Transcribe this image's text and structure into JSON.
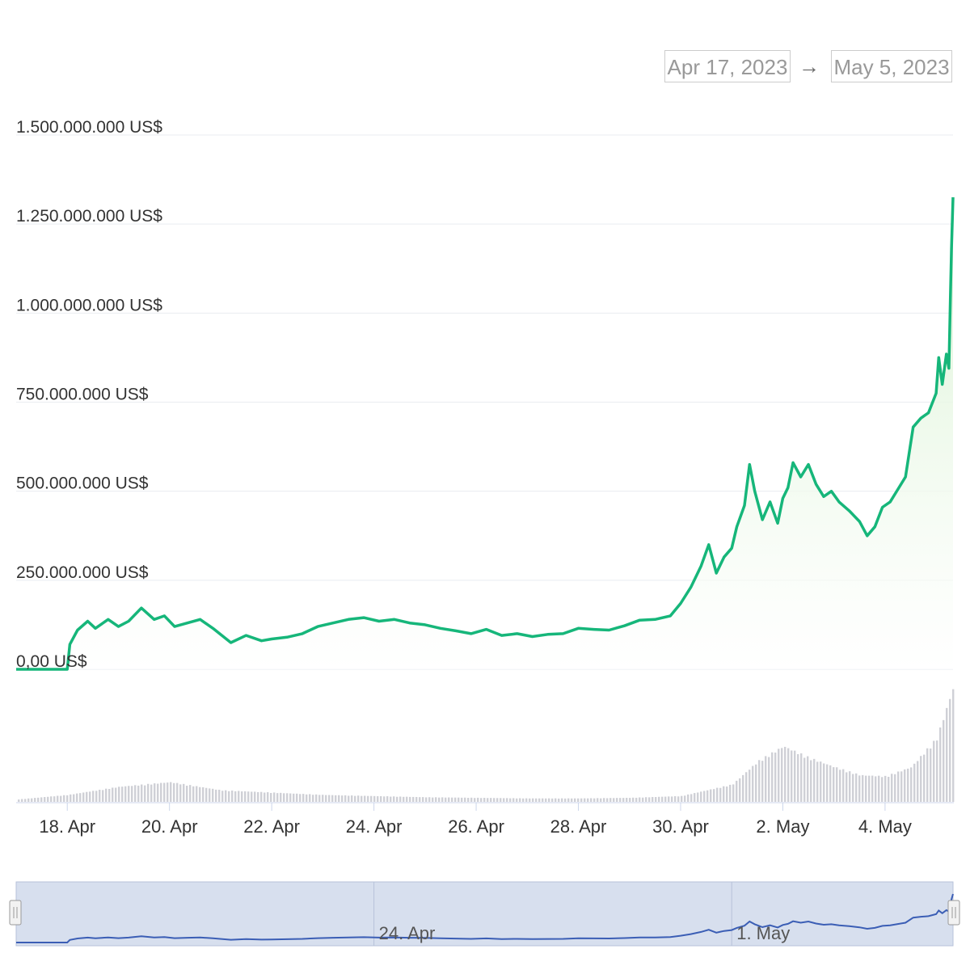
{
  "range_selector": {
    "from": "Apr 17, 2023",
    "arrow": "→",
    "to": "May 5, 2023"
  },
  "colors": {
    "line": "#16b67a",
    "area_top": "#d9f2d2",
    "volume": "#cfd0d6",
    "navigator_line": "#3b5eb5",
    "navigator_mask": "#d3dbec",
    "grid": "#e9ecf0"
  },
  "chart_data": {
    "type": "line",
    "y_tick_labels": [
      "0,00 US$",
      "250.000.000 US$",
      "500.000.000 US$",
      "750.000.000 US$",
      "1.000.000.000 US$",
      "1.250.000.000 US$",
      "1.500.000.000 US$"
    ],
    "y_tick_values": [
      0,
      250000000,
      500000000,
      750000000,
      1000000000,
      1250000000,
      1500000000
    ],
    "ylim": [
      0,
      1500000000
    ],
    "x_tick_labels": [
      "18. Apr",
      "20. Apr",
      "22. Apr",
      "24. Apr",
      "26. Apr",
      "28. Apr",
      "30. Apr",
      "2. May",
      "4. May"
    ],
    "x_tick_days": [
      1,
      3,
      5,
      7,
      9,
      11,
      13,
      15,
      17
    ],
    "xlim_days": [
      0.0,
      18.33
    ],
    "x_unit": "days since Apr 17, 2023",
    "grid": true,
    "series": [
      {
        "values": [
          [
            0.0,
            0
          ],
          [
            1.0,
            0
          ],
          [
            1.05,
            70000000
          ],
          [
            1.2,
            110000000
          ],
          [
            1.4,
            135000000
          ],
          [
            1.55,
            115000000
          ],
          [
            1.8,
            140000000
          ],
          [
            2.0,
            120000000
          ],
          [
            2.2,
            135000000
          ],
          [
            2.45,
            172000000
          ],
          [
            2.7,
            140000000
          ],
          [
            2.9,
            150000000
          ],
          [
            3.1,
            120000000
          ],
          [
            3.35,
            130000000
          ],
          [
            3.6,
            140000000
          ],
          [
            3.85,
            115000000
          ],
          [
            4.2,
            75000000
          ],
          [
            4.5,
            95000000
          ],
          [
            4.8,
            80000000
          ],
          [
            5.0,
            85000000
          ],
          [
            5.3,
            90000000
          ],
          [
            5.6,
            100000000
          ],
          [
            5.9,
            120000000
          ],
          [
            6.2,
            130000000
          ],
          [
            6.5,
            140000000
          ],
          [
            6.8,
            145000000
          ],
          [
            7.1,
            135000000
          ],
          [
            7.4,
            140000000
          ],
          [
            7.7,
            130000000
          ],
          [
            8.0,
            125000000
          ],
          [
            8.3,
            115000000
          ],
          [
            8.6,
            108000000
          ],
          [
            8.9,
            100000000
          ],
          [
            9.2,
            112000000
          ],
          [
            9.5,
            95000000
          ],
          [
            9.8,
            100000000
          ],
          [
            10.1,
            92000000
          ],
          [
            10.4,
            98000000
          ],
          [
            10.7,
            100000000
          ],
          [
            11.0,
            115000000
          ],
          [
            11.3,
            112000000
          ],
          [
            11.6,
            110000000
          ],
          [
            11.9,
            122000000
          ],
          [
            12.2,
            138000000
          ],
          [
            12.5,
            140000000
          ],
          [
            12.8,
            150000000
          ],
          [
            13.0,
            185000000
          ],
          [
            13.2,
            230000000
          ],
          [
            13.4,
            290000000
          ],
          [
            13.55,
            350000000
          ],
          [
            13.7,
            270000000
          ],
          [
            13.85,
            315000000
          ],
          [
            14.0,
            340000000
          ],
          [
            14.1,
            400000000
          ],
          [
            14.25,
            460000000
          ],
          [
            14.35,
            575000000
          ],
          [
            14.45,
            500000000
          ],
          [
            14.6,
            420000000
          ],
          [
            14.75,
            470000000
          ],
          [
            14.9,
            410000000
          ],
          [
            15.0,
            480000000
          ],
          [
            15.1,
            510000000
          ],
          [
            15.2,
            580000000
          ],
          [
            15.35,
            540000000
          ],
          [
            15.5,
            575000000
          ],
          [
            15.65,
            520000000
          ],
          [
            15.8,
            485000000
          ],
          [
            15.95,
            500000000
          ],
          [
            16.1,
            470000000
          ],
          [
            16.3,
            445000000
          ],
          [
            16.5,
            415000000
          ],
          [
            16.65,
            375000000
          ],
          [
            16.8,
            400000000
          ],
          [
            16.95,
            455000000
          ],
          [
            17.1,
            470000000
          ],
          [
            17.25,
            505000000
          ],
          [
            17.4,
            540000000
          ],
          [
            17.55,
            680000000
          ],
          [
            17.7,
            705000000
          ],
          [
            17.85,
            720000000
          ],
          [
            18.0,
            775000000
          ],
          [
            18.05,
            875000000
          ],
          [
            18.12,
            800000000
          ],
          [
            18.2,
            885000000
          ],
          [
            18.25,
            845000000
          ],
          [
            18.28,
            1050000000
          ],
          [
            18.3,
            1180000000
          ],
          [
            18.33,
            1325000000
          ]
        ]
      }
    ],
    "volume_profile": [
      [
        0.0,
        0.02
      ],
      [
        1.0,
        0.06
      ],
      [
        2.0,
        0.13
      ],
      [
        3.0,
        0.17
      ],
      [
        4.0,
        0.1
      ],
      [
        5.0,
        0.08
      ],
      [
        6.0,
        0.06
      ],
      [
        7.0,
        0.05
      ],
      [
        8.0,
        0.04
      ],
      [
        9.0,
        0.035
      ],
      [
        10.0,
        0.03
      ],
      [
        11.0,
        0.03
      ],
      [
        12.0,
        0.035
      ],
      [
        13.0,
        0.05
      ],
      [
        14.0,
        0.15
      ],
      [
        14.5,
        0.35
      ],
      [
        15.0,
        0.48
      ],
      [
        15.5,
        0.38
      ],
      [
        16.0,
        0.3
      ],
      [
        16.5,
        0.23
      ],
      [
        17.0,
        0.22
      ],
      [
        17.5,
        0.3
      ],
      [
        18.0,
        0.55
      ],
      [
        18.33,
        1.0
      ]
    ]
  },
  "navigator": {
    "tick_labels": [
      "24. Apr",
      "1. May"
    ],
    "tick_days": [
      7,
      14
    ]
  }
}
